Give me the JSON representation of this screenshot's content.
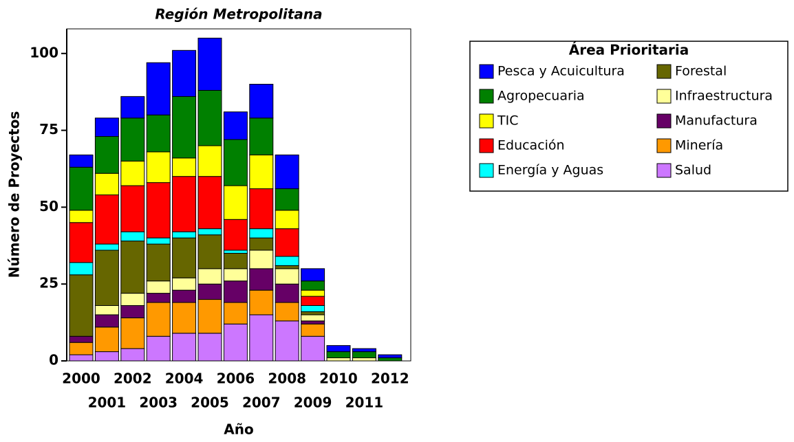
{
  "chart_data": {
    "type": "stacked-bar",
    "title": "Región Metropolitana",
    "x_label": "Año",
    "y_label": "Número de Proyectos",
    "legend_title": "Área Prioritaria",
    "categories": [
      "2000",
      "2001",
      "2002",
      "2003",
      "2004",
      "2005",
      "2006",
      "2007",
      "2008",
      "2009",
      "2010",
      "2011",
      "2012"
    ],
    "ylim": [
      0,
      108
    ],
    "yticks": [
      0,
      25,
      50,
      75,
      100
    ],
    "series": [
      {
        "name": "Salud",
        "color": "#cc77ff",
        "values": [
          2,
          3,
          4,
          8,
          9,
          9,
          12,
          15,
          13,
          8,
          0,
          0,
          0
        ]
      },
      {
        "name": "Minería",
        "color": "#ff9900",
        "values": [
          4,
          8,
          10,
          11,
          10,
          11,
          7,
          8,
          6,
          4,
          0,
          0,
          0
        ]
      },
      {
        "name": "Manufactura",
        "color": "#660066",
        "values": [
          2,
          4,
          4,
          3,
          4,
          5,
          7,
          7,
          6,
          1,
          0,
          0,
          0
        ]
      },
      {
        "name": "Infraestructura",
        "color": "#ffff99",
        "values": [
          0,
          3,
          4,
          4,
          4,
          5,
          4,
          6,
          5,
          2,
          1,
          1,
          0
        ]
      },
      {
        "name": "Forestal",
        "color": "#666600",
        "values": [
          20,
          18,
          17,
          12,
          13,
          11,
          5,
          4,
          1,
          1,
          0,
          0,
          0
        ]
      },
      {
        "name": "Energía y Aguas",
        "color": "#00ffff",
        "values": [
          4,
          2,
          3,
          2,
          2,
          2,
          1,
          3,
          3,
          2,
          0,
          0,
          0
        ]
      },
      {
        "name": "Educación",
        "color": "#ff0000",
        "values": [
          13,
          16,
          15,
          18,
          18,
          17,
          10,
          13,
          9,
          3,
          0,
          0,
          0
        ]
      },
      {
        "name": "TIC",
        "color": "#ffff00",
        "values": [
          4,
          7,
          8,
          10,
          6,
          10,
          11,
          11,
          6,
          2,
          0,
          0,
          0
        ]
      },
      {
        "name": "Agropecuaria",
        "color": "#008000",
        "values": [
          14,
          12,
          14,
          12,
          20,
          18,
          15,
          12,
          7,
          3,
          2,
          2,
          1
        ]
      },
      {
        "name": "Pesca y Acuicultura",
        "color": "#0000ff",
        "values": [
          4,
          6,
          7,
          17,
          15,
          17,
          9,
          11,
          11,
          4,
          2,
          1,
          1
        ]
      }
    ]
  }
}
